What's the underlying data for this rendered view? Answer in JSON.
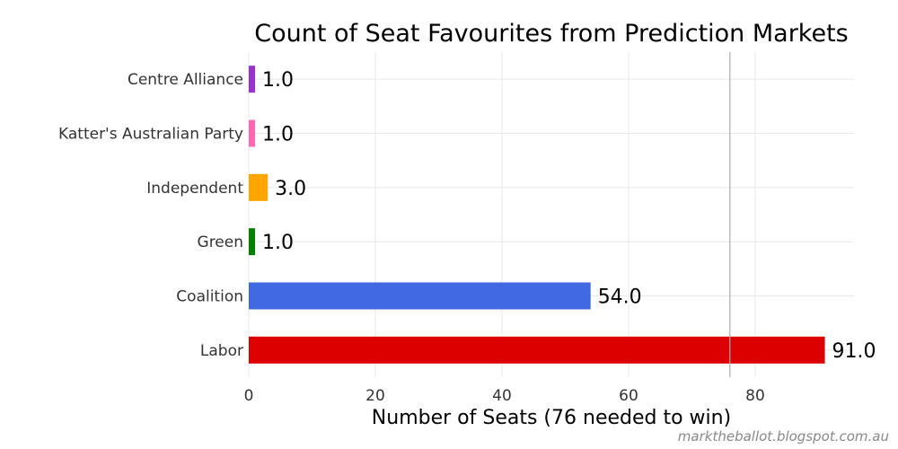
{
  "chart_data": {
    "type": "bar",
    "orientation": "horizontal",
    "title": "Count of Seat Favourites from Prediction Markets",
    "xlabel": "Number of Seats (76 needed to win)",
    "ylabel": "",
    "categories": [
      "Labor",
      "Coalition",
      "Green",
      "Independent",
      "Katter's Australian Party",
      "Centre Alliance"
    ],
    "values": [
      91,
      54,
      1,
      3,
      1,
      1
    ],
    "value_labels": [
      "91.0",
      "54.0",
      "1.0",
      "3.0",
      "1.0",
      "1.0"
    ],
    "colors": [
      "#dd0000",
      "#4169e1",
      "#008000",
      "#ffa500",
      "#ff69b4",
      "#9932cc"
    ],
    "xlim": [
      0,
      95
    ],
    "xticks": [
      0,
      20,
      40,
      60,
      80
    ],
    "xtick_labels": [
      "0",
      "20",
      "40",
      "60",
      "80"
    ],
    "reference_line": {
      "x": 76,
      "color": "#aaaaaa"
    },
    "grid": true,
    "legend": "none"
  },
  "credit": "marktheballot.blogspot.com.au"
}
